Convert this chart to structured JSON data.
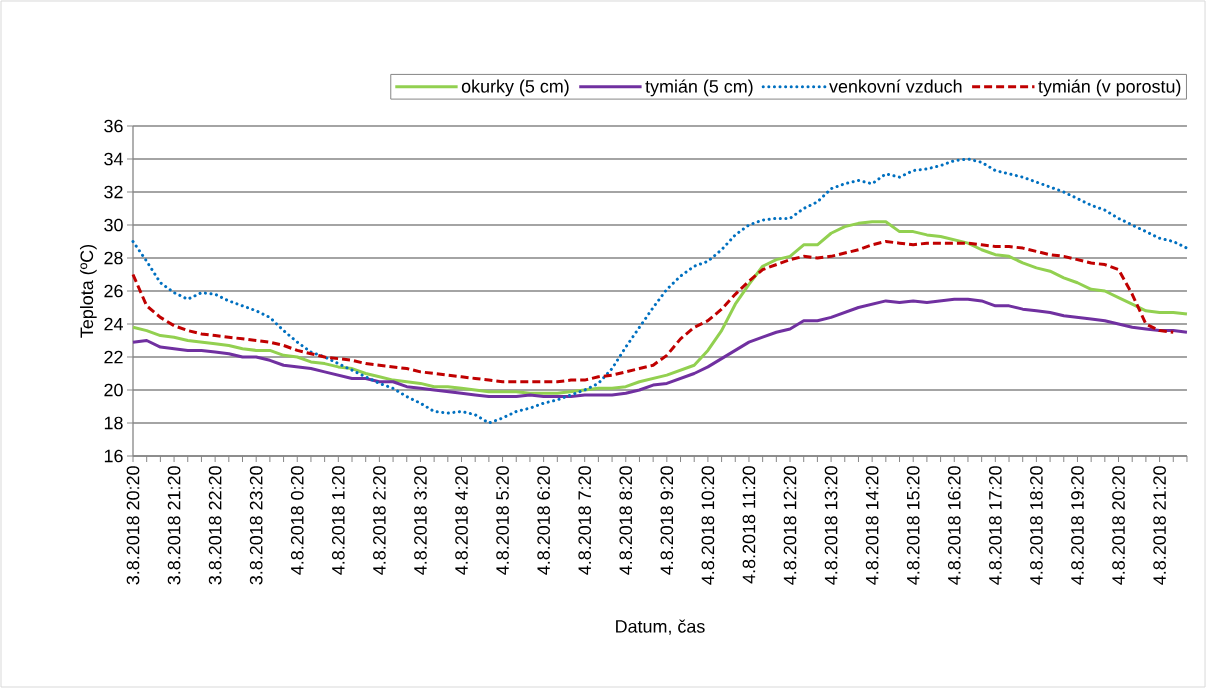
{
  "chart_data": {
    "type": "line",
    "xlabel": "Datum, čas",
    "ylabel": "Teplota (ºC)",
    "categories": [
      "3.8.2018 20:20",
      null,
      null,
      "3.8.2018 21:20",
      null,
      null,
      "3.8.2018 22:20",
      null,
      null,
      "3.8.2018 23:20",
      null,
      null,
      "4.8.2018 0:20",
      null,
      null,
      "4.8.2018 1:20",
      null,
      null,
      "4.8.2018 2:20",
      null,
      null,
      "4.8.2018 3:20",
      null,
      null,
      "4.8.2018 4:20",
      null,
      null,
      "4.8.2018 5:20",
      null,
      null,
      "4.8.2018 6:20",
      null,
      null,
      "4.8.2018 7:20",
      null,
      null,
      "4.8.2018 8:20",
      null,
      null,
      "4.8.2018 9:20",
      null,
      null,
      "4.8.2018 10:20",
      null,
      null,
      "4.8.2018 11:20",
      null,
      null,
      "4.8.2018 12:20",
      null,
      null,
      "4.8.2018 13:20",
      null,
      null,
      "4.8.2018 14:20",
      null,
      null,
      "4.8.2018 15:20",
      null,
      null,
      "4.8.2018 16:20",
      null,
      null,
      "4.8.2018 17:20",
      null,
      null,
      "4.8.2018 18:20",
      null,
      null,
      "4.8.2018 19:20",
      null,
      null,
      "4.8.2018 20:20",
      null,
      null,
      "4.8.2018 21:20",
      null,
      null
    ],
    "series": [
      {
        "name": "okurky (5 cm)",
        "color": "#92d050",
        "line_style": "solid",
        "values": [
          23.8,
          23.6,
          23.3,
          23.2,
          23.0,
          22.9,
          22.8,
          22.7,
          22.5,
          22.4,
          22.4,
          22.1,
          22.0,
          21.7,
          21.6,
          21.4,
          21.3,
          21.0,
          20.8,
          20.6,
          20.5,
          20.4,
          20.2,
          20.2,
          20.1,
          20.0,
          19.9,
          19.9,
          19.9,
          19.8,
          19.8,
          19.8,
          19.9,
          20.0,
          20.1,
          20.1,
          20.2,
          20.5,
          20.7,
          20.9,
          21.2,
          21.5,
          22.4,
          23.6,
          25.2,
          26.4,
          27.5,
          27.9,
          28.1,
          28.8,
          28.8,
          29.5,
          29.9,
          30.1,
          30.2,
          30.2,
          29.6,
          29.6,
          29.4,
          29.3,
          29.1,
          28.9,
          28.5,
          28.2,
          28.1,
          27.7,
          27.4,
          27.2,
          26.8,
          26.5,
          26.1,
          26.0,
          25.6,
          25.2,
          24.8,
          24.7,
          24.7,
          24.6
        ]
      },
      {
        "name": "tymián (5 cm)",
        "color": "#7030a0",
        "line_style": "solid",
        "values": [
          22.9,
          23.0,
          22.6,
          22.5,
          22.4,
          22.4,
          22.3,
          22.2,
          22.0,
          22.0,
          21.8,
          21.5,
          21.4,
          21.3,
          21.1,
          20.9,
          20.7,
          20.7,
          20.5,
          20.5,
          20.2,
          20.1,
          20.0,
          19.9,
          19.8,
          19.7,
          19.6,
          19.6,
          19.6,
          19.7,
          19.6,
          19.6,
          19.6,
          19.7,
          19.7,
          19.7,
          19.8,
          20.0,
          20.3,
          20.4,
          20.7,
          21.0,
          21.4,
          21.9,
          22.4,
          22.9,
          23.2,
          23.5,
          23.7,
          24.2,
          24.2,
          24.4,
          24.7,
          25.0,
          25.2,
          25.4,
          25.3,
          25.4,
          25.3,
          25.4,
          25.5,
          25.5,
          25.4,
          25.1,
          25.1,
          24.9,
          24.8,
          24.7,
          24.5,
          24.4,
          24.3,
          24.2,
          24.0,
          23.8,
          23.7,
          23.6,
          23.6,
          23.5
        ]
      },
      {
        "name": "venkovní vzduch",
        "color": "#0070c0",
        "line_style": "dotted",
        "values": [
          29.0,
          27.8,
          26.5,
          25.9,
          25.5,
          25.9,
          25.8,
          25.4,
          25.1,
          24.8,
          24.4,
          23.6,
          22.9,
          22.3,
          22.0,
          21.6,
          21.2,
          20.8,
          20.4,
          20.1,
          19.6,
          19.2,
          18.7,
          18.6,
          18.7,
          18.5,
          18.0,
          18.3,
          18.7,
          18.9,
          19.2,
          19.4,
          19.7,
          20.0,
          20.4,
          21.3,
          22.6,
          23.8,
          25.0,
          26.1,
          26.9,
          27.5,
          27.8,
          28.5,
          29.4,
          30.0,
          30.3,
          30.4,
          30.4,
          31.0,
          31.4,
          32.2,
          32.5,
          32.7,
          32.5,
          33.1,
          32.9,
          33.3,
          33.4,
          33.6,
          33.9,
          34.0,
          33.8,
          33.3,
          33.1,
          32.9,
          32.6,
          32.3,
          32.0,
          31.6,
          31.2,
          30.9,
          30.4,
          30.0,
          29.6,
          29.2,
          29.0,
          28.6
        ]
      },
      {
        "name": "tymián (v porostu)",
        "color": "#c00000",
        "line_style": "dashed",
        "values": [
          27.0,
          25.1,
          24.4,
          23.9,
          23.6,
          23.4,
          23.3,
          23.2,
          23.1,
          23.0,
          22.9,
          22.7,
          22.4,
          22.2,
          22.0,
          21.9,
          21.8,
          21.6,
          21.5,
          21.4,
          21.3,
          21.1,
          21.0,
          20.9,
          20.8,
          20.7,
          20.6,
          20.5,
          20.5,
          20.5,
          20.5,
          20.5,
          20.6,
          20.6,
          20.8,
          20.9,
          21.1,
          21.3,
          21.5,
          22.1,
          23.1,
          23.8,
          24.2,
          24.9,
          25.8,
          26.6,
          27.3,
          27.6,
          27.9,
          28.1,
          28.0,
          28.1,
          28.3,
          28.5,
          28.8,
          29.0,
          28.9,
          28.8,
          28.9,
          28.9,
          28.9,
          28.9,
          28.8,
          28.7,
          28.7,
          28.6,
          28.4,
          28.2,
          28.1,
          27.9,
          27.7,
          27.6,
          27.3,
          25.8,
          24.0,
          23.6,
          23.5,
          null
        ]
      }
    ],
    "ylim": [
      16,
      36
    ],
    "yticks": [
      16,
      18,
      20,
      22,
      24,
      26,
      28,
      30,
      32,
      34,
      36
    ],
    "grid": "y",
    "legend": "top"
  }
}
